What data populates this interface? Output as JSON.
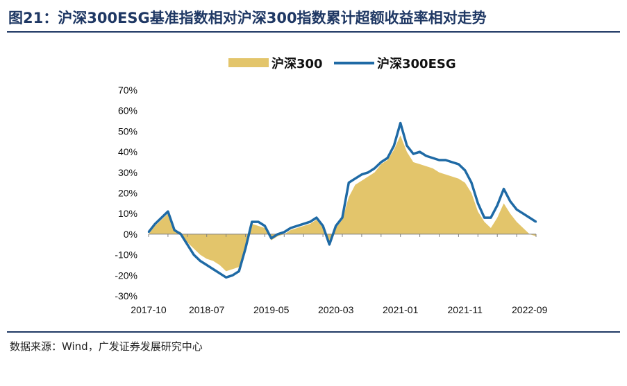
{
  "figure": {
    "title": "图21：沪深300ESG基准指数相对沪深300指数累计超额收益率相对走势",
    "source": "数据来源：Wind，广发证券发展研究中心"
  },
  "chart_data": {
    "type": "area",
    "title": "",
    "xlabel": "",
    "ylabel": "",
    "x_ticks": [
      "2017-10",
      "2018-07",
      "2019-05",
      "2020-03",
      "2021-01",
      "2021-11",
      "2022-09"
    ],
    "y_ticks": [
      "70%",
      "60%",
      "50%",
      "40%",
      "30%",
      "20%",
      "10%",
      "0%",
      "-10%",
      "-20%",
      "-30%"
    ],
    "ylim": [
      -0.3,
      0.7
    ],
    "legend_position": "top-center",
    "grid": false,
    "x": [
      "2017-10",
      "2017-11",
      "2017-12",
      "2018-01",
      "2018-02",
      "2018-03",
      "2018-04",
      "2018-05",
      "2018-06",
      "2018-07",
      "2018-08",
      "2018-09",
      "2018-10",
      "2018-11",
      "2018-12",
      "2019-01",
      "2019-02",
      "2019-03",
      "2019-04",
      "2019-05",
      "2019-06",
      "2019-07",
      "2019-08",
      "2019-09",
      "2019-10",
      "2019-11",
      "2019-12",
      "2020-01",
      "2020-02",
      "2020-03",
      "2020-04",
      "2020-05",
      "2020-06",
      "2020-07",
      "2020-08",
      "2020-09",
      "2020-10",
      "2020-11",
      "2020-12",
      "2021-01",
      "2021-02",
      "2021-03",
      "2021-04",
      "2021-05",
      "2021-06",
      "2021-07",
      "2021-08",
      "2021-09",
      "2021-10",
      "2021-11",
      "2021-12",
      "2022-01",
      "2022-02",
      "2022-03",
      "2022-04",
      "2022-05",
      "2022-06",
      "2022-07",
      "2022-08",
      "2022-09",
      "2022-10"
    ],
    "series": [
      {
        "name": "沪深300",
        "style": "area",
        "color": "#e3c56b",
        "values": [
          0.0,
          0.04,
          0.07,
          0.1,
          0.02,
          0.01,
          -0.04,
          -0.07,
          -0.1,
          -0.12,
          -0.13,
          -0.15,
          -0.18,
          -0.17,
          -0.16,
          -0.07,
          0.05,
          0.04,
          0.03,
          -0.03,
          -0.01,
          0.0,
          0.02,
          0.03,
          0.04,
          0.05,
          0.07,
          0.03,
          -0.05,
          0.03,
          0.07,
          0.18,
          0.24,
          0.26,
          0.28,
          0.3,
          0.34,
          0.36,
          0.41,
          0.48,
          0.4,
          0.35,
          0.34,
          0.33,
          0.32,
          0.3,
          0.29,
          0.28,
          0.27,
          0.25,
          0.2,
          0.11,
          0.06,
          0.03,
          0.08,
          0.15,
          0.1,
          0.06,
          0.03,
          0.0,
          -0.01
        ]
      },
      {
        "name": "沪深300ESG",
        "style": "line",
        "color": "#1f6aa5",
        "values": [
          0.01,
          0.05,
          0.08,
          0.11,
          0.02,
          0.0,
          -0.05,
          -0.1,
          -0.13,
          -0.15,
          -0.17,
          -0.19,
          -0.21,
          -0.2,
          -0.18,
          -0.07,
          0.06,
          0.06,
          0.04,
          -0.02,
          0.0,
          0.01,
          0.03,
          0.04,
          0.05,
          0.06,
          0.08,
          0.04,
          -0.05,
          0.04,
          0.08,
          0.25,
          0.27,
          0.29,
          0.3,
          0.32,
          0.35,
          0.37,
          0.43,
          0.54,
          0.43,
          0.39,
          0.4,
          0.38,
          0.37,
          0.36,
          0.36,
          0.35,
          0.34,
          0.31,
          0.25,
          0.15,
          0.08,
          0.08,
          0.14,
          0.22,
          0.16,
          0.12,
          0.1,
          0.08,
          0.06
        ]
      }
    ]
  }
}
